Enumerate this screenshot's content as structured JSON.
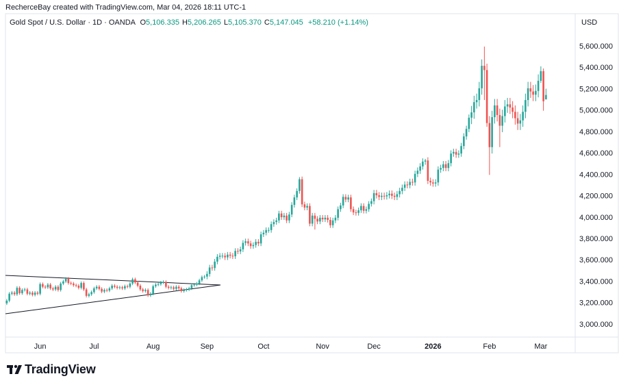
{
  "header": {
    "credit": "RecherceBay created with TradingView.com, Mar 04, 2026 18:11 UTC-1"
  },
  "chart_data": {
    "type": "candlestick",
    "title": "Gold Spot / U.S. Dollar · 1D · OANDA",
    "ohlc_readout": [
      {
        "label": "O",
        "value": "5,106.335"
      },
      {
        "label": "H",
        "value": "5,206.265"
      },
      {
        "label": "L",
        "value": "5,105.370"
      },
      {
        "label": "C",
        "value": "5,147.045"
      }
    ],
    "change": "+58.210 (+1.14%)",
    "currency": "USD",
    "categories": [
      null,
      null,
      null,
      null,
      null,
      null,
      null,
      null,
      null,
      null,
      null,
      null,
      null,
      "Jun",
      null,
      null,
      null,
      null,
      null,
      null,
      null,
      null,
      null,
      null,
      null,
      null,
      null,
      null,
      null,
      null,
      null,
      null,
      null,
      null,
      "Jul",
      null,
      null,
      null,
      null,
      null,
      null,
      null,
      null,
      null,
      null,
      null,
      null,
      null,
      null,
      null,
      null,
      null,
      null,
      null,
      null,
      null,
      null,
      "Aug",
      null,
      null,
      null,
      null,
      null,
      null,
      null,
      null,
      null,
      null,
      null,
      null,
      null,
      null,
      null,
      null,
      null,
      null,
      null,
      null,
      "Sep",
      null,
      null,
      null,
      null,
      null,
      null,
      null,
      null,
      null,
      null,
      null,
      null,
      null,
      null,
      null,
      null,
      null,
      null,
      null,
      null,
      null,
      "Oct",
      null,
      null,
      null,
      null,
      null,
      null,
      null,
      null,
      null,
      null,
      null,
      null,
      null,
      null,
      null,
      null,
      null,
      null,
      null,
      null,
      null,
      null,
      "Nov",
      null,
      null,
      null,
      null,
      null,
      null,
      null,
      null,
      null,
      null,
      null,
      null,
      null,
      null,
      null,
      null,
      null,
      null,
      null,
      "Dec",
      null,
      null,
      null,
      null,
      null,
      null,
      null,
      null,
      null,
      null,
      null,
      null,
      null,
      null,
      null,
      null,
      null,
      null,
      null,
      null,
      null,
      null,
      "2026",
      null,
      null,
      null,
      null,
      null,
      null,
      null,
      null,
      null,
      null,
      null,
      null,
      null,
      null,
      null,
      null,
      null,
      null,
      null,
      null,
      null,
      "Feb",
      null,
      null,
      null,
      null,
      null,
      null,
      null,
      null,
      null,
      null,
      null,
      null,
      null,
      null,
      null,
      null,
      null,
      null,
      null,
      "Mar",
      null,
      null
    ],
    "open": [
      3200,
      3225,
      3290,
      3300,
      3285,
      3345,
      3295,
      3325,
      3330,
      3290,
      3300,
      3280,
      3300,
      3290,
      3380,
      3355,
      3350,
      3375,
      3340,
      3330,
      3355,
      3325,
      3385,
      3405,
      3430,
      3390,
      3385,
      3370,
      3365,
      3345,
      3390,
      3330,
      3270,
      3285,
      3305,
      3340,
      3355,
      3335,
      3310,
      3325,
      3320,
      3340,
      3365,
      3355,
      3345,
      3350,
      3340,
      3360,
      3355,
      3385,
      3425,
      3395,
      3365,
      3330,
      3315,
      3325,
      3275,
      3290,
      3360,
      3375,
      3380,
      3395,
      3400,
      3355,
      3345,
      3350,
      3335,
      3355,
      3340,
      3315,
      3325,
      3330,
      3340,
      3370,
      3375,
      3385,
      3415,
      3445,
      3450,
      3475,
      3535,
      3530,
      3590,
      3635,
      3645,
      3645,
      3630,
      3655,
      3645,
      3640,
      3690,
      3685,
      3705,
      3765,
      3780,
      3760,
      3735,
      3745,
      3775,
      3760,
      3845,
      3860,
      3885,
      3885,
      3940,
      3960,
      3975,
      4040,
      4005,
      4020,
      3975,
      4030,
      4120,
      4190,
      4250,
      4360,
      4125,
      4095,
      4110,
      3945,
      4020,
      3990,
      3965,
      4000,
      3985,
      4000,
      3980,
      3930,
      3975,
      4000,
      4080,
      4115,
      4195,
      4170,
      4190,
      4080,
      4050,
      4045,
      4070,
      4110,
      4065,
      4080,
      4130,
      4155,
      4230,
      4210,
      4195,
      4205,
      4200,
      4210,
      4225,
      4205,
      4195,
      4220,
      4250,
      4280,
      4310,
      4305,
      4335,
      4330,
      4410,
      4440,
      4480,
      4525,
      4535,
      4345,
      4330,
      4320,
      4330,
      4450,
      4465,
      4500,
      4465,
      4510,
      4600,
      4615,
      4590,
      4600,
      4670,
      4760,
      4830,
      4935,
      4985,
      5080,
      5100,
      5210,
      5420,
      5380,
      4885,
      4660,
      4940,
      5050,
      4960,
      4860,
      4950,
      5040,
      5060,
      5030,
      4990,
      4930,
      4880,
      4910,
      4990,
      5100,
      5210,
      5180,
      5150,
      5185,
      5280,
      5370,
      5106.335
    ],
    "high": [
      3240,
      3305,
      3315,
      3315,
      3360,
      3360,
      3340,
      3345,
      3345,
      3315,
      3315,
      3315,
      3315,
      3395,
      3395,
      3370,
      3390,
      3390,
      3355,
      3370,
      3370,
      3400,
      3420,
      3445,
      3445,
      3405,
      3400,
      3385,
      3380,
      3405,
      3405,
      3345,
      3300,
      3320,
      3355,
      3370,
      3370,
      3350,
      3340,
      3340,
      3355,
      3380,
      3380,
      3370,
      3365,
      3365,
      3375,
      3375,
      3400,
      3440,
      3440,
      3410,
      3380,
      3345,
      3340,
      3340,
      3305,
      3375,
      3390,
      3395,
      3410,
      3415,
      3415,
      3370,
      3365,
      3365,
      3370,
      3370,
      3355,
      3340,
      3345,
      3355,
      3385,
      3390,
      3400,
      3430,
      3460,
      3465,
      3500,
      3560,
      3560,
      3615,
      3660,
      3670,
      3670,
      3670,
      3680,
      3680,
      3670,
      3715,
      3715,
      3730,
      3790,
      3805,
      3805,
      3785,
      3770,
      3800,
      3800,
      3870,
      3885,
      3910,
      3910,
      3965,
      3985,
      4000,
      4065,
      4065,
      4045,
      4045,
      4055,
      4145,
      4215,
      4275,
      4380,
      4385,
      4150,
      4135,
      4135,
      4045,
      4045,
      4015,
      4025,
      4025,
      4025,
      4025,
      4005,
      4000,
      4025,
      4105,
      4140,
      4220,
      4220,
      4215,
      4215,
      4105,
      4075,
      4095,
      4135,
      4135,
      4105,
      4155,
      4180,
      4260,
      4260,
      4240,
      4235,
      4235,
      4240,
      4255,
      4255,
      4235,
      4250,
      4280,
      4310,
      4340,
      4340,
      4365,
      4365,
      4440,
      4470,
      4510,
      4555,
      4550,
      4565,
      4375,
      4360,
      4360,
      4480,
      4495,
      4530,
      4530,
      4540,
      4630,
      4645,
      4645,
      4630,
      4700,
      4790,
      4860,
      4965,
      5045,
      5140,
      5160,
      5270,
      5480,
      5600,
      5440,
      4950,
      5000,
      5110,
      5110,
      5020,
      5010,
      5100,
      5120,
      5120,
      5090,
      5050,
      4990,
      4970,
      5050,
      5160,
      5270,
      5270,
      5240,
      5245,
      5340,
      5415,
      5395,
      5206.265
    ],
    "low": [
      3185,
      3210,
      3275,
      3270,
      3270,
      3280,
      3280,
      3310,
      3275,
      3275,
      3265,
      3265,
      3275,
      3275,
      3340,
      3335,
      3335,
      3325,
      3315,
      3315,
      3310,
      3310,
      3370,
      3390,
      3375,
      3370,
      3355,
      3350,
      3330,
      3330,
      3315,
      3255,
      3255,
      3270,
      3290,
      3325,
      3320,
      3295,
      3295,
      3305,
      3305,
      3325,
      3340,
      3330,
      3330,
      3325,
      3325,
      3340,
      3340,
      3370,
      3380,
      3350,
      3315,
      3300,
      3300,
      3260,
      3260,
      3275,
      3345,
      3360,
      3365,
      3380,
      3340,
      3330,
      3330,
      3320,
      3320,
      3325,
      3300,
      3300,
      3310,
      3315,
      3325,
      3355,
      3360,
      3370,
      3400,
      3430,
      3425,
      3450,
      3505,
      3505,
      3565,
      3610,
      3620,
      3605,
      3605,
      3620,
      3615,
      3615,
      3660,
      3660,
      3680,
      3740,
      3735,
      3710,
      3710,
      3720,
      3735,
      3735,
      3820,
      3835,
      3860,
      3860,
      3915,
      3935,
      3950,
      3980,
      3980,
      3950,
      3950,
      4005,
      4095,
      4165,
      4225,
      4100,
      4070,
      4070,
      3920,
      3920,
      3890,
      3940,
      3940,
      3960,
      3960,
      3955,
      3905,
      3905,
      3950,
      3975,
      4055,
      4090,
      4145,
      4145,
      4055,
      4025,
      4020,
      4020,
      4045,
      4040,
      4040,
      4055,
      4105,
      4125,
      4180,
      4165,
      4165,
      4170,
      4170,
      4180,
      4175,
      4165,
      4165,
      4190,
      4220,
      4250,
      4275,
      4275,
      4300,
      4300,
      4380,
      4410,
      4450,
      4495,
      4315,
      4300,
      4290,
      4290,
      4300,
      4420,
      4435,
      4435,
      4435,
      4480,
      4570,
      4560,
      4560,
      4570,
      4640,
      4730,
      4800,
      4875,
      4925,
      5020,
      5040,
      5150,
      5100,
      4850,
      4400,
      4600,
      4880,
      4900,
      4660,
      4800,
      4890,
      4980,
      4970,
      4930,
      4870,
      4820,
      4820,
      4850,
      4930,
      5040,
      5120,
      5090,
      5090,
      5125,
      5260,
      5000,
      5105.37
    ],
    "close": [
      3225,
      3290,
      3300,
      3285,
      3345,
      3295,
      3325,
      3330,
      3290,
      3300,
      3280,
      3300,
      3290,
      3380,
      3355,
      3350,
      3375,
      3340,
      3330,
      3355,
      3325,
      3385,
      3405,
      3430,
      3390,
      3385,
      3370,
      3365,
      3345,
      3390,
      3330,
      3270,
      3285,
      3305,
      3340,
      3355,
      3335,
      3310,
      3325,
      3320,
      3340,
      3365,
      3355,
      3345,
      3350,
      3340,
      3360,
      3355,
      3385,
      3425,
      3395,
      3365,
      3330,
      3315,
      3325,
      3275,
      3290,
      3360,
      3375,
      3380,
      3395,
      3400,
      3355,
      3345,
      3350,
      3335,
      3355,
      3340,
      3315,
      3325,
      3330,
      3340,
      3370,
      3375,
      3385,
      3415,
      3445,
      3450,
      3475,
      3535,
      3530,
      3590,
      3635,
      3645,
      3645,
      3630,
      3655,
      3645,
      3640,
      3690,
      3685,
      3705,
      3765,
      3780,
      3760,
      3735,
      3745,
      3775,
      3760,
      3845,
      3860,
      3885,
      3885,
      3940,
      3960,
      3975,
      4040,
      4005,
      4020,
      3975,
      4030,
      4120,
      4190,
      4250,
      4360,
      4125,
      4095,
      4110,
      3945,
      4020,
      3990,
      3965,
      4000,
      3985,
      4000,
      3980,
      3930,
      3975,
      4000,
      4080,
      4115,
      4195,
      4170,
      4190,
      4080,
      4050,
      4045,
      4070,
      4110,
      4065,
      4080,
      4130,
      4155,
      4230,
      4210,
      4195,
      4205,
      4200,
      4210,
      4225,
      4205,
      4195,
      4220,
      4250,
      4280,
      4310,
      4305,
      4335,
      4330,
      4410,
      4440,
      4480,
      4525,
      4535,
      4345,
      4330,
      4320,
      4330,
      4450,
      4465,
      4500,
      4465,
      4510,
      4600,
      4615,
      4590,
      4600,
      4670,
      4760,
      4830,
      4935,
      4985,
      5080,
      5100,
      5210,
      5420,
      5380,
      4885,
      4660,
      4940,
      5050,
      4960,
      4860,
      4950,
      5040,
      5060,
      5030,
      4990,
      4930,
      4880,
      4910,
      4990,
      5100,
      5210,
      5180,
      5150,
      5185,
      5280,
      5370,
      5089,
      5147.045
    ],
    "up_color": "#26a69a",
    "down_color": "#ef5350",
    "ylim": [
      2885,
      5907
    ],
    "yticks": [
      {
        "value": 3000,
        "label": "3,000.000"
      },
      {
        "value": 3200,
        "label": "3,200.000"
      },
      {
        "value": 3400,
        "label": "3,400.000"
      },
      {
        "value": 3600,
        "label": "3,600.000"
      },
      {
        "value": 3800,
        "label": "3,800.000"
      },
      {
        "value": 4000,
        "label": "4,000.000"
      },
      {
        "value": 4200,
        "label": "4,200.000"
      },
      {
        "value": 4400,
        "label": "4,400.000"
      },
      {
        "value": 4600,
        "label": "4,600.000"
      },
      {
        "value": 4800,
        "label": "4,800.000"
      },
      {
        "value": 5000,
        "label": "5,000.000"
      },
      {
        "value": 5200,
        "label": "5,200.000"
      },
      {
        "value": 5400,
        "label": "5,400.000"
      },
      {
        "value": 5600,
        "label": "5,600.000"
      }
    ],
    "grid": false
  },
  "footer": {
    "brand": "TradingView"
  }
}
